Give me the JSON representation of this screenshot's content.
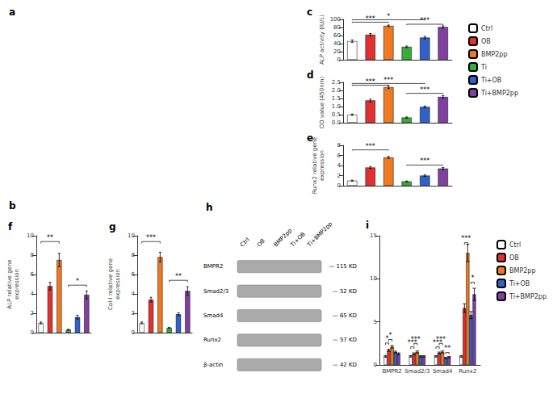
{
  "chart_data": [
    {
      "type": "image",
      "title": "a"
    },
    {
      "type": "image",
      "title": "b"
    },
    {
      "type": "bar",
      "title": "c",
      "ylabel": "ALP activity (IU/L)",
      "categories": [
        "Ctrl",
        "OB",
        "BMP2pp",
        "Ti",
        "Ti+OB",
        "Ti+BMP2pp"
      ],
      "values": [
        46,
        62,
        84,
        32,
        55,
        81
      ],
      "errors": [
        3,
        3,
        2,
        2,
        3,
        3
      ],
      "colors": [
        "#ffffff",
        "#e03030",
        "#f07820",
        "#3aaa3a",
        "#3060c8",
        "#8040a0"
      ],
      "ylim": [
        0,
        100
      ],
      "yticks": [
        0,
        20,
        40,
        60,
        80,
        100
      ],
      "grid": false,
      "legend": "right",
      "tick_labels": "y",
      "annotations": [
        {
          "x1": "Ctrl",
          "x2": "BMP2pp",
          "y": 93,
          "label": "***"
        },
        {
          "x1": "Ctrl",
          "x2": "Ti+OB",
          "y": 99,
          "label": "*"
        },
        {
          "x1": "Ti",
          "x2": "Ti+BMP2pp",
          "y": 88,
          "label": "***"
        }
      ]
    },
    {
      "type": "bar",
      "title": "d",
      "ylabel": "OD value (450nm)",
      "categories": [
        "Ctrl",
        "OB",
        "BMP2pp",
        "Ti",
        "Ti+OB",
        "Ti+BMP2pp"
      ],
      "values": [
        0.5,
        1.38,
        2.2,
        0.32,
        0.98,
        1.6
      ],
      "errors": [
        0.04,
        0.08,
        0.09,
        0.04,
        0.06,
        0.08
      ],
      "colors": [
        "#ffffff",
        "#e03030",
        "#f07820",
        "#3aaa3a",
        "#3060c8",
        "#8040a0"
      ],
      "ylim": [
        0,
        2.5
      ],
      "yticks": [
        {
          "value": 0,
          "label": "0.0"
        },
        0.5,
        {
          "value": 1.0,
          "label": "1.0"
        },
        1.5,
        {
          "value": 2.0,
          "label": "2.0"
        },
        2.5
      ],
      "grid": false,
      "tick_labels": "y",
      "annotations": [
        {
          "x1": "Ctrl",
          "x2": "BMP2pp",
          "y": 2.32,
          "label": "***"
        },
        {
          "x1": "Ctrl",
          "x2": "Ti+OB",
          "y": 2.43,
          "label": "***"
        },
        {
          "x1": "Ti",
          "x2": "Ti+BMP2pp",
          "y": 1.82,
          "label": "***"
        }
      ]
    },
    {
      "type": "bar",
      "title": "e",
      "ylabel": "Runx2 relative gene\nexpression",
      "categories": [
        "Ctrl",
        "OB",
        "BMP2pp",
        "Ti",
        "Ti+OB",
        "Ti+BMP2pp"
      ],
      "values": [
        1.0,
        3.6,
        5.6,
        0.85,
        2.0,
        3.4
      ],
      "errors": [
        0.1,
        0.2,
        0.2,
        0.08,
        0.15,
        0.2
      ],
      "colors": [
        "#ffffff",
        "#e03030",
        "#f07820",
        "#3aaa3a",
        "#3060c8",
        "#8040a0"
      ],
      "ylim": [
        0,
        8
      ],
      "yticks": [
        0,
        2,
        4,
        6,
        8
      ],
      "grid": false,
      "tick_labels": "y",
      "annotations": [
        {
          "x1": "Ctrl",
          "x2": "BMP2pp",
          "y": 7.1,
          "label": "***"
        },
        {
          "x1": "Ti",
          "x2": "Ti+BMP2pp",
          "y": 4.1,
          "label": "***"
        }
      ]
    },
    {
      "type": "bar",
      "title": "f",
      "ylabel": "ALP relative gene\nexpression",
      "categories": [
        "Ctrl",
        "OB",
        "BMP2pp",
        "Ti",
        "Ti+OB",
        "Ti+BMP2pp"
      ],
      "values": [
        1.0,
        4.8,
        7.5,
        0.3,
        1.6,
        3.9
      ],
      "errors": [
        0.1,
        0.4,
        0.7,
        0.05,
        0.2,
        0.4
      ],
      "colors": [
        "#ffffff",
        "#e03030",
        "#f07820",
        "#3aaa3a",
        "#3060c8",
        "#8040a0"
      ],
      "ylim": [
        0,
        10
      ],
      "yticks": [
        0,
        2,
        4,
        6,
        8,
        10
      ],
      "grid": false,
      "tick_labels": "y",
      "annotations": [
        {
          "x1": "Ctrl",
          "x2": "BMP2pp",
          "y": 9.4,
          "label": "**"
        },
        {
          "x1": "Ti",
          "x2": "Ti+BMP2pp",
          "y": 4.9,
          "label": "*"
        }
      ]
    },
    {
      "type": "bar",
      "title": "g",
      "ylabel": "Col-I relative gene\nexpression",
      "categories": [
        "Ctrl",
        "OB",
        "BMP2pp",
        "Ti",
        "Ti+OB",
        "Ti+BMP2pp"
      ],
      "values": [
        1.0,
        3.4,
        7.8,
        0.5,
        1.9,
        4.3
      ],
      "errors": [
        0.1,
        0.25,
        0.5,
        0.05,
        0.15,
        0.45
      ],
      "colors": [
        "#ffffff",
        "#e03030",
        "#f07820",
        "#3aaa3a",
        "#3060c8",
        "#8040a0"
      ],
      "ylim": [
        0,
        10
      ],
      "yticks": [
        0,
        2,
        4,
        6,
        8,
        10
      ],
      "grid": false,
      "tick_labels": "y",
      "annotations": [
        {
          "x1": "Ctrl",
          "x2": "BMP2pp",
          "y": 9.4,
          "label": "***"
        },
        {
          "x1": "Ti",
          "x2": "Ti+BMP2pp",
          "y": 5.4,
          "label": "**"
        }
      ]
    },
    {
      "type": "blot",
      "title": "h",
      "categories": [
        "Ctrl",
        "OB",
        "BMP2pp",
        "Ti+OB",
        "Ti+BMP2pp"
      ],
      "row_labels": [
        "BMPR2",
        "Smad2/3",
        "Smad4",
        "Runx2",
        "β-actin"
      ],
      "annotations": [
        "— 115 KD",
        "— 52 KD",
        "— 65 KD",
        "— 57 KD",
        "— 42 KD"
      ]
    },
    {
      "type": "bar",
      "title": "i",
      "categories": [
        "BMPR2",
        "Smad2/3",
        "Smad4",
        "Runx2"
      ],
      "series": [
        {
          "name": "Ctrl",
          "color": "#ffffff",
          "values": [
            1.0,
            1.0,
            1.0,
            1.0
          ],
          "errors": [
            0.1,
            0.08,
            0.08,
            0.1
          ]
        },
        {
          "name": "OB",
          "color": "#e03030",
          "values": [
            1.7,
            1.3,
            1.4,
            6.6
          ],
          "errors": [
            0.12,
            0.1,
            0.1,
            0.5
          ]
        },
        {
          "name": "BMP2pp",
          "color": "#f07820",
          "values": [
            2.1,
            1.5,
            1.5,
            13.0
          ],
          "errors": [
            0.15,
            0.12,
            0.12,
            1.0
          ]
        },
        {
          "name": "Ti+OB",
          "color": "#3060c8",
          "values": [
            1.5,
            1.0,
            0.8,
            5.8
          ],
          "errors": [
            0.1,
            0.08,
            0.08,
            0.4
          ]
        },
        {
          "name": "Ti+BMP2pp",
          "color": "#8040a0",
          "values": [
            1.3,
            1.0,
            0.9,
            8.2
          ],
          "errors": [
            0.1,
            0.08,
            0.08,
            0.7
          ]
        }
      ],
      "ylim": [
        0,
        15
      ],
      "yticks": [
        0,
        5,
        10,
        15
      ],
      "grid": false,
      "legend": "right",
      "annotations": [
        {
          "category": "BMPR2",
          "x1": "Ctrl",
          "x2": "OB",
          "y": 2.55,
          "label": "*"
        },
        {
          "category": "BMPR2",
          "x1": "OB",
          "x2": "BMP2pp",
          "y": 2.95,
          "label": "*"
        },
        {
          "category": "Smad2/3",
          "x1": "Ctrl",
          "x2": "OB",
          "y": 2.1,
          "label": "***"
        },
        {
          "category": "Smad2/3",
          "x1": "OB",
          "x2": "BMP2pp",
          "y": 2.5,
          "label": "***"
        },
        {
          "category": "Smad4",
          "x1": "Ctrl",
          "x2": "OB",
          "y": 2.1,
          "label": "***"
        },
        {
          "category": "Smad4",
          "x1": "OB",
          "x2": "BMP2pp",
          "y": 2.5,
          "label": "***"
        },
        {
          "category": "Smad4",
          "x1": "Ti+OB",
          "x2": "Ti+BMP2pp",
          "y": 1.45,
          "label": "**"
        },
        {
          "category": "Runx2",
          "x1": "OB",
          "x2": "BMP2pp",
          "y": 14.2,
          "label": "***"
        },
        {
          "category": "Runx2",
          "x1": "Ti+OB",
          "x2": "Ti+BMP2pp",
          "y": 9.6,
          "label": "*"
        }
      ]
    }
  ]
}
